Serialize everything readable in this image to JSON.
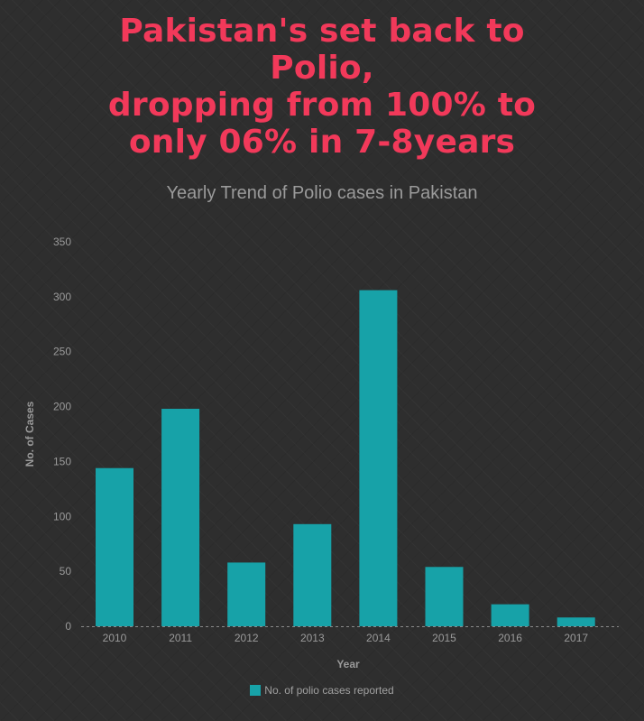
{
  "headline": {
    "lines": [
      "Pakistan's set back to",
      "Polio,",
      "dropping from 100% to",
      "only 06% in 7-8years"
    ],
    "color": "#f2395a"
  },
  "chart_data": {
    "type": "bar",
    "title": "Yearly Trend of Polio cases in Pakistan",
    "xlabel": "Year",
    "ylabel": "No. of Cases",
    "categories": [
      "2010",
      "2011",
      "2012",
      "2013",
      "2014",
      "2015",
      "2016",
      "2017"
    ],
    "series": [
      {
        "name": "No. of polio cases reported",
        "values": [
          144,
          198,
          58,
          93,
          306,
          54,
          20,
          8
        ],
        "color": "#17a2a8"
      }
    ],
    "ylim": [
      0,
      350
    ],
    "yticks": [
      "0",
      "50",
      "100",
      "150",
      "200",
      "250",
      "300",
      "350"
    ],
    "grid": false,
    "legend_position": "bottom"
  }
}
